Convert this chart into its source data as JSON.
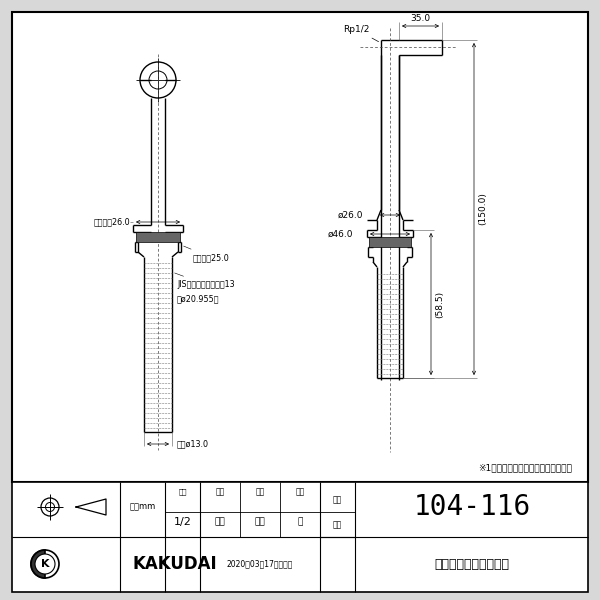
{
  "bg_color": "#d8d8d8",
  "drawing_bg": "#ffffff",
  "title": "104-116",
  "subtitle": "水栓取付脚（ミドル）",
  "note": "※1　（）内寸法は参考寸法である。",
  "unit_label": "単位mm",
  "scale_label": "尺度",
  "scale_val": "1/2",
  "maker": "和田",
  "checker": "寒川",
  "approver": "祭",
  "draw_label": "製図",
  "check_label": "検図",
  "approve_label": "承認",
  "part_no_label": "品番",
  "part_name_label": "品名",
  "date_str": "2020年03月17日　作成",
  "brand": "KAKUDAI",
  "dim_35": "35.0",
  "dim_150": "(150.0)",
  "dim_26": "ø26.0",
  "dim_46": "ø46.0",
  "dim_585": "(58.5)",
  "dim_rp": "Rp1/2",
  "label_hex26": "六角対辺26.0",
  "label_hex25": "六角対辺25.0",
  "label_jis": "JIS給水栓取付ねじ、13",
  "label_jis2": "（ø20.955）",
  "label_inner": "内径ø13.0"
}
